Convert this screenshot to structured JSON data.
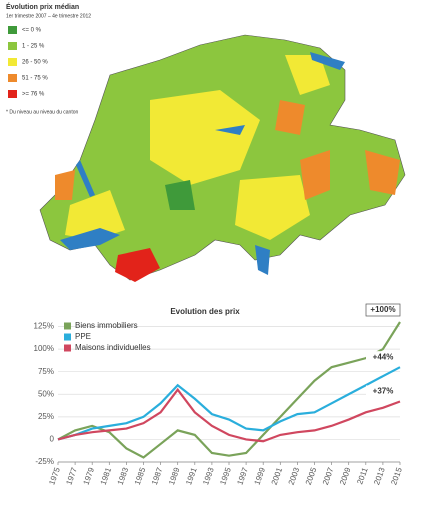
{
  "map": {
    "title": "Évolution prix médian",
    "subtitle": "1er trimestre 2007 – 4e trimestre 2012",
    "legend": [
      {
        "label": "<= 0 %",
        "color": "#3f9a3a"
      },
      {
        "label": "1 - 25 %",
        "color": "#8cc63e"
      },
      {
        "label": "26 - 50 %",
        "color": "#f2e935"
      },
      {
        "label": "51 - 75 %",
        "color": "#ee8a2c"
      },
      {
        "label": ">= 76 %",
        "color": "#e2231a"
      }
    ],
    "note": "* Du niveau au niveau du canton"
  },
  "chart_data": {
    "type": "line",
    "title": "Evolution des prix",
    "x": [
      1975,
      1977,
      1979,
      1981,
      1983,
      1985,
      1987,
      1989,
      1991,
      1993,
      1995,
      1997,
      1999,
      2001,
      2003,
      2005,
      2007,
      2009,
      2011,
      2013,
      2015
    ],
    "xlim": [
      1975,
      2015
    ],
    "xticks": [
      1975,
      1977,
      1979,
      1981,
      1983,
      1985,
      1987,
      1989,
      1991,
      1993,
      1995,
      1997,
      1999,
      2001,
      2003,
      2005,
      2007,
      2009,
      2011,
      2013,
      2015
    ],
    "ylim": [
      -25,
      130
    ],
    "yticks": [
      {
        "value": -25,
        "label": "-25%"
      },
      0,
      {
        "value": 25,
        "label": "25%"
      },
      {
        "value": 50,
        "label": "50%"
      },
      {
        "value": 75,
        "label": "75%"
      },
      {
        "value": 100,
        "label": "100%"
      },
      {
        "value": 125,
        "label": "125%"
      }
    ],
    "grid": true,
    "legend": "top-left",
    "series": [
      {
        "name": "Biens immobiliers",
        "color": "#7aa35a",
        "values": [
          0,
          10,
          15,
          8,
          -10,
          -20,
          -5,
          10,
          5,
          -15,
          -18,
          -15,
          5,
          25,
          45,
          65,
          80,
          85,
          90,
          100,
          130
        ]
      },
      {
        "name": "PPE",
        "color": "#2aaedc",
        "values": [
          0,
          5,
          12,
          15,
          18,
          25,
          40,
          60,
          45,
          28,
          22,
          12,
          10,
          20,
          28,
          30,
          40,
          50,
          60,
          70,
          80
        ]
      },
      {
        "name": "Maisons individuelles",
        "color": "#d0475f",
        "values": [
          0,
          5,
          8,
          10,
          12,
          18,
          30,
          55,
          30,
          15,
          5,
          0,
          -2,
          5,
          8,
          10,
          15,
          22,
          30,
          35,
          42
        ]
      }
    ],
    "annotations": [
      "+100%",
      "+44%",
      "+37%"
    ]
  }
}
